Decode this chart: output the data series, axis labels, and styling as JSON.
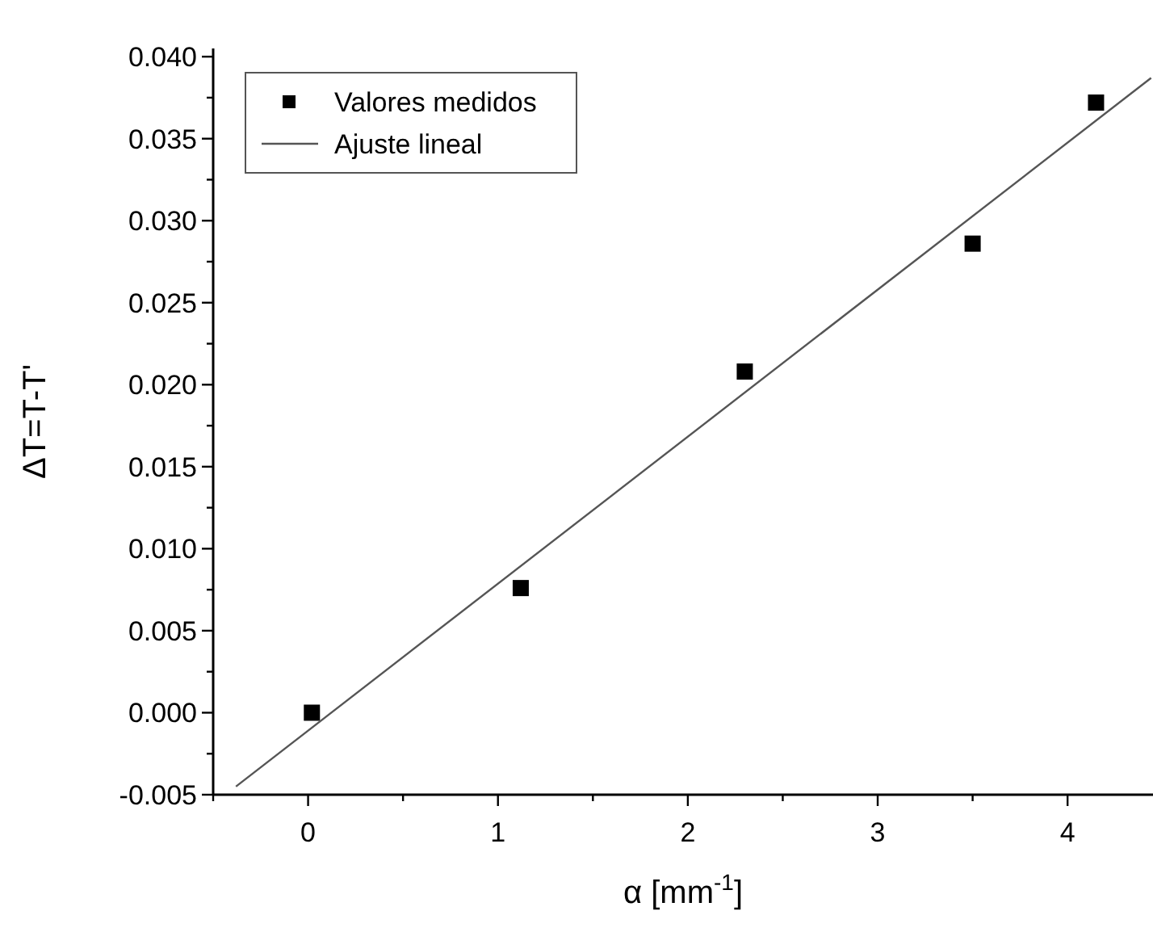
{
  "chart_data": {
    "type": "scatter",
    "xlabel": "α [mm$^{-1}$]",
    "ylabel": "ΔT=T-T'",
    "xlim": [
      -0.5,
      4.45
    ],
    "ylim": [
      -0.005,
      0.0405
    ],
    "xticks": [
      {
        "value": -0.5,
        "label": null
      },
      0,
      {
        "value": 0.5,
        "label": null
      },
      1,
      {
        "value": 1.5,
        "label": null
      },
      2,
      {
        "value": 2.5,
        "label": null
      },
      3,
      {
        "value": 3.5,
        "label": null
      },
      4
    ],
    "yticks": [
      {
        "value": -0.005,
        "label": "-0.005"
      },
      {
        "value": -0.0025,
        "label": null
      },
      {
        "value": 0,
        "label": "0.000"
      },
      {
        "value": 0.0025,
        "label": null
      },
      {
        "value": 0.005,
        "label": "0.005"
      },
      {
        "value": 0.0075,
        "label": null
      },
      {
        "value": 0.01,
        "label": "0.010"
      },
      {
        "value": 0.0125,
        "label": null
      },
      {
        "value": 0.015,
        "label": "0.015"
      },
      {
        "value": 0.0175,
        "label": null
      },
      {
        "value": 0.02,
        "label": "0.020"
      },
      {
        "value": 0.0225,
        "label": null
      },
      {
        "value": 0.025,
        "label": "0.025"
      },
      {
        "value": 0.0275,
        "label": null
      },
      {
        "value": 0.03,
        "label": "0.030"
      },
      {
        "value": 0.0325,
        "label": null
      },
      {
        "value": 0.035,
        "label": "0.035"
      },
      {
        "value": 0.0375,
        "label": null
      },
      {
        "value": 0.04,
        "label": "0.040"
      }
    ],
    "series": [
      {
        "name": "Valores medidos",
        "color": "#000000",
        "marker": "square",
        "x": [
          0.02,
          1.12,
          2.3,
          3.5,
          4.15
        ],
        "values": [
          0,
          0.0076,
          0.0208,
          0.0286,
          0.0372
        ]
      },
      {
        "name": "Ajuste lineal",
        "type": "line",
        "color": "#555555",
        "line_style": "solid",
        "x": [
          -0.38,
          4.44
        ],
        "values": [
          -0.0045,
          0.0387
        ]
      }
    ],
    "legend": "top left",
    "grid": false
  }
}
